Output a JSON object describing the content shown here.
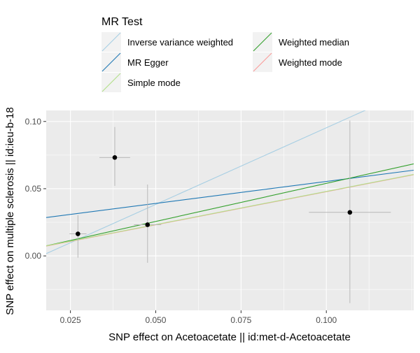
{
  "chart_data": {
    "type": "scatter",
    "xlabel": "SNP effect on Acetoacetate || id:met-d-Acetoacetate",
    "ylabel": "SNP effect on multiple sclerosis || id:ieu-b-18",
    "xlim": [
      0.0179,
      0.1256
    ],
    "ylim": [
      -0.0405,
      0.1082
    ],
    "x_ticks": [
      0.025,
      0.05,
      0.075,
      0.1
    ],
    "x_tick_labels": [
      "0.025",
      "0.050",
      "0.075",
      "0.100"
    ],
    "y_ticks": [
      0.0,
      0.05,
      0.1
    ],
    "y_tick_labels": [
      "0.00",
      "0.05",
      "0.10"
    ],
    "grid": true,
    "points": [
      {
        "x": 0.0272,
        "y": 0.0164,
        "x_err": 0.0025,
        "y_lo": -0.0013,
        "y_hi": 0.0303
      },
      {
        "x": 0.038,
        "y": 0.0732,
        "x_err": 0.0045,
        "y_lo": 0.0521,
        "y_hi": 0.0959
      },
      {
        "x": 0.0476,
        "y": 0.0232,
        "x_err": 0.004,
        "y_lo": -0.0051,
        "y_hi": 0.0531
      },
      {
        "x": 0.1069,
        "y": 0.0324,
        "x_err": 0.012,
        "y_lo": -0.0351,
        "y_hi": 0.1007
      }
    ],
    "legend": {
      "title": "MR Test",
      "position": "top",
      "entries": [
        {
          "label": "Inverse variance weighted",
          "color": "#a6cee3"
        },
        {
          "label": "Weighted median",
          "color": "#33a02c"
        },
        {
          "label": "MR Egger",
          "color": "#1f78b4"
        },
        {
          "label": "Weighted mode",
          "color": "#fb9a99"
        },
        {
          "label": "Simple mode",
          "color": "#b2df8a"
        }
      ]
    },
    "lines": [
      {
        "name": "Inverse variance weighted",
        "color": "#a6cee3",
        "intercept": -0.0187,
        "slope": 1.14
      },
      {
        "name": "MR Egger",
        "color": "#1f78b4",
        "intercept": 0.0227,
        "slope": 0.3268
      },
      {
        "name": "Weighted median",
        "color": "#33a02c",
        "intercept": -0.00266,
        "slope": 0.5662
      },
      {
        "name": "Weighted mode",
        "color": "#fb9a99",
        "intercept": -0.00154,
        "slope": 0.4931
      },
      {
        "name": "Simple mode",
        "color": "#b2df8a",
        "intercept": -0.00134,
        "slope": 0.4931
      }
    ],
    "colors": {
      "panel_background": "#ebebeb",
      "grid": "#ffffff",
      "point": "#000000",
      "error_bar": "#b8b8b8",
      "axis_text": "#4d4d4d",
      "label_text": "#000000"
    }
  }
}
